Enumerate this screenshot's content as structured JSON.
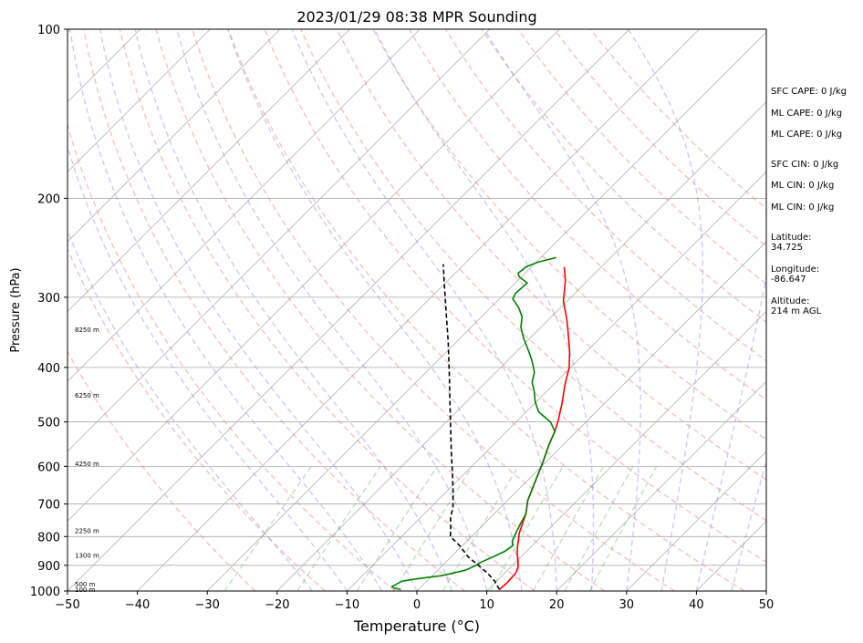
{
  "chart_data": {
    "type": "line",
    "subtype": "skew-t log-p sounding",
    "title": "2023/01/29 08:38 MPR Sounding",
    "xlabel": "Temperature (°C)",
    "ylabel": "Pressure (hPa)",
    "xlim": [
      -50,
      50
    ],
    "ylim": [
      1000,
      100
    ],
    "y_scale": "log",
    "x_ticks": [
      -50,
      -40,
      -30,
      -20,
      -10,
      0,
      10,
      20,
      30,
      40,
      50
    ],
    "x_tick_labels": [
      "−50",
      "−40",
      "−30",
      "−20",
      "−10",
      "0",
      "10",
      "20",
      "30",
      "40",
      "50"
    ],
    "y_ticks": [
      1000,
      900,
      800,
      700,
      600,
      500,
      400,
      300,
      200,
      100
    ],
    "y_tick_labels": [
      "1000",
      "900",
      "800",
      "700",
      "600",
      "500",
      "400",
      "300",
      "200",
      "100"
    ],
    "grid": true,
    "height_labels": [
      {
        "p": 992,
        "label": "100 m"
      },
      {
        "p": 970,
        "label": "500 m"
      },
      {
        "p": 862,
        "label": "1300 m"
      },
      {
        "p": 780,
        "label": "2250 m"
      },
      {
        "p": 592,
        "label": "4250 m"
      },
      {
        "p": 448,
        "label": "6250 m"
      },
      {
        "p": 342,
        "label": "8250 m"
      }
    ],
    "series": [
      {
        "key": "temperature",
        "color": "#ff0000",
        "points": [
          [
            11.6,
            994
          ],
          [
            11.7,
            970
          ],
          [
            11.6,
            930
          ],
          [
            11.0,
            905
          ],
          [
            10.0,
            880
          ],
          [
            9.0,
            858
          ],
          [
            7.9,
            830
          ],
          [
            7.0,
            805
          ],
          [
            6.4,
            790
          ],
          [
            5.5,
            760
          ],
          [
            4.6,
            730
          ],
          [
            2.9,
            690
          ],
          [
            1.3,
            640
          ],
          [
            -0.4,
            590
          ],
          [
            -2.0,
            550
          ],
          [
            -3.1,
            520
          ],
          [
            -4.2,
            497
          ],
          [
            -6.0,
            465
          ],
          [
            -8.3,
            430
          ],
          [
            -10.2,
            400
          ],
          [
            -12.4,
            375
          ],
          [
            -15.0,
            350
          ],
          [
            -17.6,
            327
          ],
          [
            -20.5,
            305
          ],
          [
            -23.2,
            280
          ],
          [
            -25.3,
            265
          ]
        ]
      },
      {
        "key": "dewpoint",
        "color": "#008000",
        "points": [
          [
            -2.5,
            994
          ],
          [
            -3.7,
            988
          ],
          [
            -4.2,
            982
          ],
          [
            -3.5,
            960
          ],
          [
            -1.5,
            950
          ],
          [
            1.5,
            938
          ],
          [
            4.0,
            918
          ],
          [
            4.8,
            900
          ],
          [
            5.0,
            890
          ],
          [
            6.0,
            870
          ],
          [
            6.9,
            850
          ],
          [
            7.2,
            830
          ],
          [
            6.5,
            815
          ],
          [
            5.9,
            790
          ],
          [
            5.2,
            760
          ],
          [
            4.6,
            730
          ],
          [
            2.9,
            690
          ],
          [
            1.3,
            640
          ],
          [
            -0.4,
            590
          ],
          [
            -2.0,
            550
          ],
          [
            -3.1,
            520
          ],
          [
            -5.1,
            500
          ],
          [
            -8.2,
            480
          ],
          [
            -10.2,
            460
          ],
          [
            -11.9,
            440
          ],
          [
            -13.4,
            425
          ],
          [
            -14.5,
            408
          ],
          [
            -16.4,
            390
          ],
          [
            -18.1,
            376
          ],
          [
            -20.9,
            355
          ],
          [
            -22.9,
            339
          ],
          [
            -24.2,
            325
          ],
          [
            -26.0,
            313
          ],
          [
            -28.1,
            302
          ],
          [
            -28.5,
            295
          ],
          [
            -28.3,
            283
          ],
          [
            -30.3,
            276
          ],
          [
            -31.0,
            272
          ],
          [
            -30.8,
            265
          ],
          [
            -29.8,
            260
          ],
          [
            -27.8,
            255
          ]
        ]
      },
      {
        "key": "parcel",
        "color": "#000000",
        "dashed": true,
        "points": [
          [
            11.6,
            994
          ],
          [
            9.7,
            960
          ],
          [
            7.6,
            930
          ],
          [
            5.1,
            900
          ],
          [
            2.5,
            870
          ],
          [
            -0.4,
            830
          ],
          [
            -3.0,
            800
          ],
          [
            -4.3,
            770
          ],
          [
            -5.7,
            740
          ],
          [
            -6.8,
            710
          ],
          [
            -8.8,
            670
          ],
          [
            -11.6,
            620
          ],
          [
            -14.7,
            570
          ],
          [
            -18.0,
            520
          ],
          [
            -22.4,
            460
          ],
          [
            -26.5,
            410
          ],
          [
            -31.2,
            360
          ],
          [
            -35.6,
            320
          ],
          [
            -40.3,
            282
          ],
          [
            -43.0,
            262
          ]
        ]
      }
    ],
    "background_lines": {
      "isotherm_color": "#b0b0b0",
      "isobar_color": "#aaaaaa",
      "dry_adiabat_color": "#ff8080",
      "moist_adiabat_color": "#8080ff",
      "mixing_ratio_color": "#50b050",
      "dry_adiabat_thetas": [
        250,
        260,
        270,
        280,
        290,
        300,
        310,
        320,
        330,
        340,
        350,
        360,
        370,
        380,
        390,
        400,
        410,
        420
      ],
      "moist_adiabat_temps_1000": [
        -15,
        -10,
        -5,
        0,
        5,
        10,
        15,
        20,
        25,
        30,
        35,
        40,
        45,
        50
      ],
      "mixing_ratios": [
        0.4,
        1,
        2,
        3,
        5,
        8,
        12,
        16,
        20
      ]
    }
  },
  "side_panel": {
    "sfc_cape": "SFC CAPE: 0 J/kg",
    "ml_cape_1": "ML CAPE: 0 J/kg",
    "ml_cape_2": "ML CAPE: 0 J/kg",
    "sfc_cin": "SFC CIN: 0 J/kg",
    "ml_cin_1": "ML CIN: 0 J/kg",
    "ml_cin_2": "ML CIN: 0 J/kg",
    "latitude_label": "Latitude:",
    "latitude_value": "34.725",
    "longitude_label": "Longitude:",
    "longitude_value": "-86.647",
    "altitude_label": "Altitude:",
    "altitude_value": "214 m AGL"
  }
}
